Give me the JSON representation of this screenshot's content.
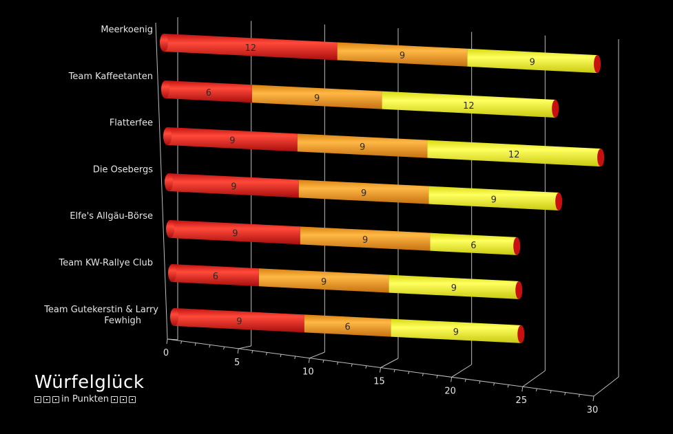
{
  "chart_data": {
    "type": "bar",
    "orientation": "horizontal",
    "stacked": true,
    "categories": [
      "Meerkoenig",
      "Team Kaffeetanten",
      "Flatterfee",
      "Die Osebergs",
      "Elfe's Allgäu-Börse",
      "Team KW-Rallye Club",
      "Team Gutekerstin & Larry Fewhigh"
    ],
    "series": [
      {
        "color": "#e82222",
        "values": [
          12,
          6,
          9,
          9,
          9,
          6,
          9
        ]
      },
      {
        "color": "#f5a020",
        "values": [
          9,
          9,
          9,
          9,
          9,
          9,
          6
        ]
      },
      {
        "color": "#f0f02a",
        "values": [
          9,
          12,
          12,
          9,
          6,
          9,
          9
        ]
      }
    ],
    "xlim": [
      0,
      30
    ],
    "xticks": [
      0,
      5,
      10,
      15,
      20,
      25,
      30
    ],
    "grid": true,
    "legend": "none",
    "title": "Würfelglück",
    "subtitle": "in Punkten"
  },
  "caption": {
    "title": "Würfelglück",
    "subtitle": "in Punkten",
    "dice_icons": [
      "die-icon",
      "die-icon",
      "die-icon",
      "die-icon",
      "die-icon",
      "die-icon"
    ]
  }
}
